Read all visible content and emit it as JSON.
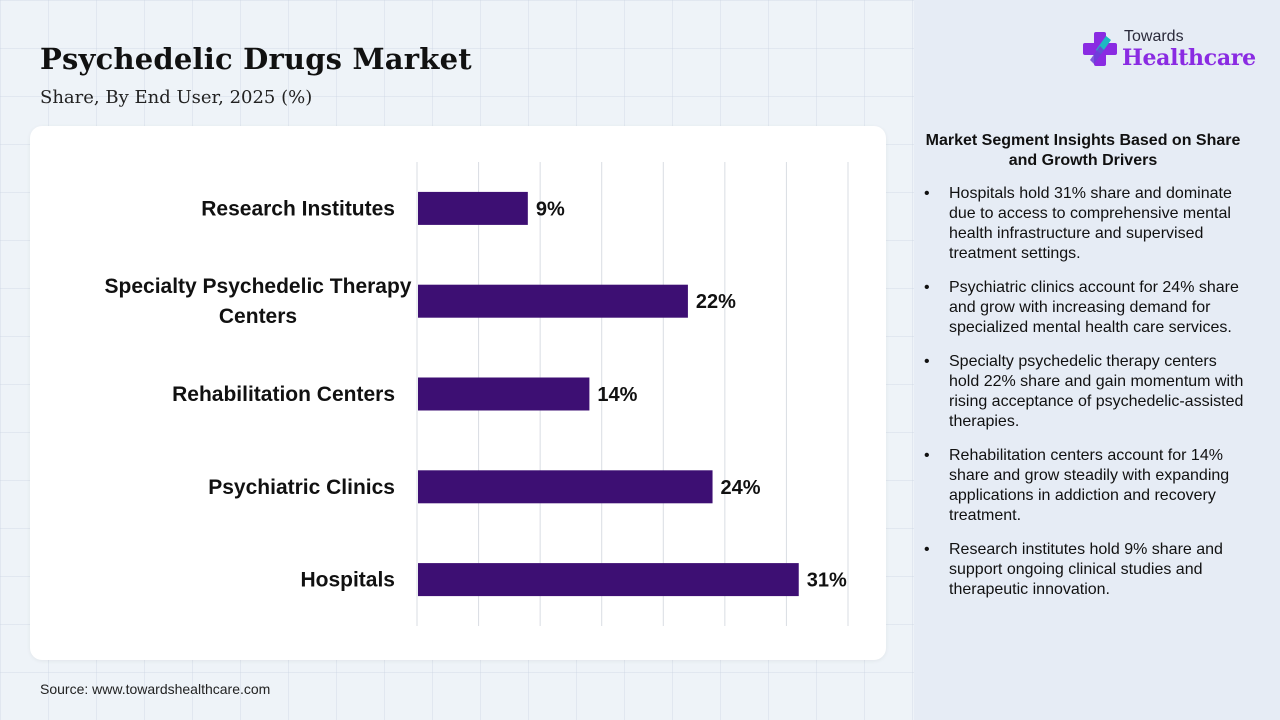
{
  "header": {
    "title": "Psychedelic Drugs Market",
    "subtitle": "Share, By End User, 2025 (%)"
  },
  "logo": {
    "small": "Towards",
    "big": "Healthcare",
    "icon": "cross-plus-icon",
    "colors": {
      "purple": "#8a2be2",
      "teal": "#1db9c3"
    }
  },
  "source": "Source: www.towardshealthcare.com",
  "insights": {
    "title": "Market Segment Insights Based on Share and Growth Drivers",
    "bullets": [
      "Hospitals hold 31% share and dominate due to access to comprehensive mental health infrastructure and supervised treatment settings.",
      "Psychiatric clinics account for 24% share and grow with increasing demand for specialized mental health care services.",
      "Specialty psychedelic therapy centers hold 22% share and gain momentum with rising acceptance of psychedelic-assisted therapies.",
      "Rehabilitation centers account for 14% share and grow steadily with expanding applications in addiction and recovery treatment.",
      "Research institutes hold 9% share and support ongoing clinical studies and therapeutic innovation."
    ]
  },
  "chart_data": {
    "type": "bar",
    "orientation": "horizontal",
    "categories": [
      "Research Institutes",
      "Specialty Psychedelic Therapy Centers",
      "Rehabilitation Centers",
      "Psychiatric Clinics",
      "Hospitals"
    ],
    "category_lines": [
      [
        "Research Institutes"
      ],
      [
        "Specialty Psychedelic Therapy",
        "Centers"
      ],
      [
        "Rehabilitation Centers"
      ],
      [
        "Psychiatric Clinics"
      ],
      [
        "Hospitals"
      ]
    ],
    "values": [
      9,
      22,
      14,
      24,
      31
    ],
    "data_labels": [
      "9%",
      "22%",
      "14%",
      "24%",
      "31%"
    ],
    "xlim": [
      0,
      35
    ],
    "grid": true,
    "bar_color": "#3d0f73"
  }
}
